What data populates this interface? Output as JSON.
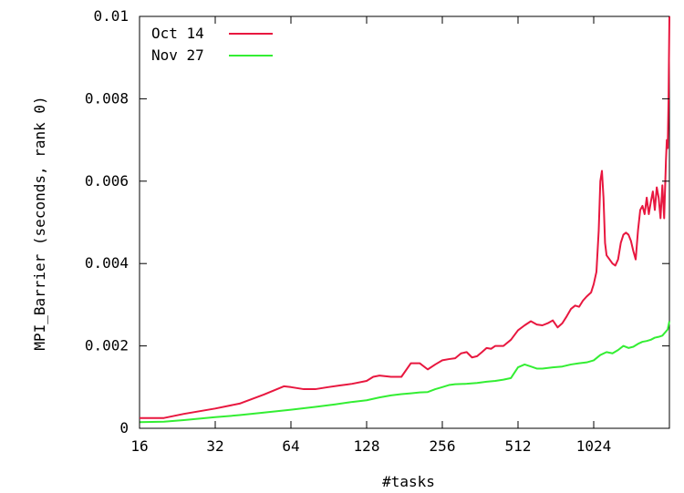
{
  "chart_data": {
    "type": "line",
    "xlabel": "#tasks",
    "ylabel": "MPI_Barrier (seconds, rank 0)",
    "x_scale": "log2",
    "xlim": [
      16,
      2048
    ],
    "ylim": [
      0,
      0.01
    ],
    "x_ticks": [
      16,
      32,
      64,
      128,
      256,
      512,
      1024
    ],
    "x_tick_labels": [
      "16",
      "32",
      "64",
      "128",
      "256",
      "512",
      "1024"
    ],
    "y_ticks": [
      0,
      0.002,
      0.004,
      0.006,
      0.008,
      0.01
    ],
    "y_tick_labels": [
      "0",
      "0.002",
      "0.004",
      "0.006",
      "0.008",
      "0.01"
    ],
    "grid": false,
    "legend_position": "top-left",
    "series": [
      {
        "name": "Oct 14",
        "color": "#e8173f",
        "points": [
          [
            16,
            0.00025
          ],
          [
            20,
            0.00025
          ],
          [
            24,
            0.00035
          ],
          [
            32,
            0.00048
          ],
          [
            40,
            0.0006
          ],
          [
            50,
            0.00082
          ],
          [
            60,
            0.00102
          ],
          [
            64,
            0.001
          ],
          [
            72,
            0.00095
          ],
          [
            80,
            0.00095
          ],
          [
            90,
            0.001
          ],
          [
            100,
            0.00104
          ],
          [
            112,
            0.00108
          ],
          [
            128,
            0.00115
          ],
          [
            136,
            0.00125
          ],
          [
            144,
            0.00128
          ],
          [
            160,
            0.00125
          ],
          [
            176,
            0.00125
          ],
          [
            192,
            0.00158
          ],
          [
            208,
            0.00158
          ],
          [
            224,
            0.00143
          ],
          [
            240,
            0.00155
          ],
          [
            256,
            0.00165
          ],
          [
            272,
            0.00168
          ],
          [
            288,
            0.0017
          ],
          [
            304,
            0.00182
          ],
          [
            320,
            0.00185
          ],
          [
            336,
            0.00172
          ],
          [
            352,
            0.00175
          ],
          [
            368,
            0.00185
          ],
          [
            384,
            0.00195
          ],
          [
            400,
            0.00193
          ],
          [
            416,
            0.002
          ],
          [
            448,
            0.002
          ],
          [
            480,
            0.00215
          ],
          [
            512,
            0.00238
          ],
          [
            544,
            0.0025
          ],
          [
            576,
            0.0026
          ],
          [
            608,
            0.00252
          ],
          [
            640,
            0.0025
          ],
          [
            672,
            0.00255
          ],
          [
            704,
            0.00262
          ],
          [
            736,
            0.00245
          ],
          [
            768,
            0.00255
          ],
          [
            800,
            0.00272
          ],
          [
            832,
            0.0029
          ],
          [
            864,
            0.00298
          ],
          [
            896,
            0.00295
          ],
          [
            928,
            0.0031
          ],
          [
            960,
            0.0032
          ],
          [
            1000,
            0.0033
          ],
          [
            1024,
            0.0035
          ],
          [
            1050,
            0.0038
          ],
          [
            1072,
            0.0048
          ],
          [
            1088,
            0.006
          ],
          [
            1104,
            0.00625
          ],
          [
            1120,
            0.0056
          ],
          [
            1136,
            0.0045
          ],
          [
            1152,
            0.0042
          ],
          [
            1184,
            0.0041
          ],
          [
            1216,
            0.004
          ],
          [
            1248,
            0.00395
          ],
          [
            1280,
            0.0041
          ],
          [
            1312,
            0.0045
          ],
          [
            1344,
            0.0047
          ],
          [
            1376,
            0.00475
          ],
          [
            1408,
            0.0047
          ],
          [
            1440,
            0.00455
          ],
          [
            1472,
            0.0043
          ],
          [
            1504,
            0.0041
          ],
          [
            1536,
            0.0048
          ],
          [
            1568,
            0.0053
          ],
          [
            1600,
            0.0054
          ],
          [
            1632,
            0.0052
          ],
          [
            1664,
            0.0056
          ],
          [
            1696,
            0.0052
          ],
          [
            1728,
            0.0055
          ],
          [
            1760,
            0.00575
          ],
          [
            1792,
            0.0053
          ],
          [
            1824,
            0.00585
          ],
          [
            1856,
            0.0056
          ],
          [
            1888,
            0.0051
          ],
          [
            1920,
            0.0059
          ],
          [
            1952,
            0.0051
          ],
          [
            1984,
            0.0065
          ],
          [
            2000,
            0.007
          ],
          [
            2016,
            0.0068
          ],
          [
            2032,
            0.008
          ],
          [
            2048,
            0.01
          ]
        ]
      },
      {
        "name": "Nov 27",
        "color": "#33ee33",
        "points": [
          [
            16,
            0.00015
          ],
          [
            20,
            0.00016
          ],
          [
            24,
            0.0002
          ],
          [
            32,
            0.00027
          ],
          [
            40,
            0.00032
          ],
          [
            48,
            0.00037
          ],
          [
            64,
            0.00045
          ],
          [
            80,
            0.00052
          ],
          [
            96,
            0.00058
          ],
          [
            112,
            0.00064
          ],
          [
            128,
            0.00068
          ],
          [
            144,
            0.00075
          ],
          [
            160,
            0.0008
          ],
          [
            176,
            0.00083
          ],
          [
            192,
            0.00085
          ],
          [
            208,
            0.00087
          ],
          [
            224,
            0.00088
          ],
          [
            240,
            0.00095
          ],
          [
            256,
            0.001
          ],
          [
            272,
            0.00105
          ],
          [
            288,
            0.00107
          ],
          [
            320,
            0.00108
          ],
          [
            352,
            0.0011
          ],
          [
            384,
            0.00113
          ],
          [
            416,
            0.00115
          ],
          [
            448,
            0.00118
          ],
          [
            480,
            0.00122
          ],
          [
            512,
            0.00148
          ],
          [
            544,
            0.00155
          ],
          [
            576,
            0.0015
          ],
          [
            608,
            0.00145
          ],
          [
            640,
            0.00145
          ],
          [
            704,
            0.00148
          ],
          [
            768,
            0.0015
          ],
          [
            832,
            0.00155
          ],
          [
            896,
            0.00158
          ],
          [
            960,
            0.0016
          ],
          [
            1024,
            0.00165
          ],
          [
            1088,
            0.00178
          ],
          [
            1152,
            0.00185
          ],
          [
            1216,
            0.00182
          ],
          [
            1280,
            0.0019
          ],
          [
            1344,
            0.002
          ],
          [
            1408,
            0.00195
          ],
          [
            1472,
            0.00198
          ],
          [
            1536,
            0.00205
          ],
          [
            1600,
            0.0021
          ],
          [
            1664,
            0.00212
          ],
          [
            1728,
            0.00215
          ],
          [
            1792,
            0.0022
          ],
          [
            1856,
            0.00222
          ],
          [
            1920,
            0.00225
          ],
          [
            1984,
            0.00235
          ],
          [
            2016,
            0.0024
          ],
          [
            2048,
            0.0026
          ]
        ]
      }
    ]
  }
}
